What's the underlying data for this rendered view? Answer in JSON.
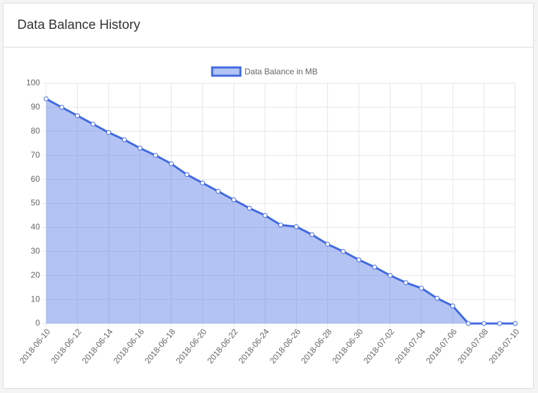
{
  "chart_data": {
    "type": "line",
    "title": "Data Balance History",
    "categories": [
      "2018-06-10",
      null,
      "2018-06-12",
      null,
      "2018-06-14",
      null,
      "2018-06-16",
      null,
      "2018-06-18",
      null,
      "2018-06-20",
      null,
      "2018-06-22",
      null,
      "2018-06-24",
      null,
      "2018-06-26",
      null,
      "2018-06-28",
      null,
      "2018-06-30",
      null,
      "2018-07-02",
      null,
      "2018-07-04",
      null,
      "2018-07-06",
      null,
      "2018-07-08",
      null,
      "2018-07-10"
    ],
    "series": [
      {
        "name": "Data Balance in MB",
        "color": "#4169e1",
        "values": [
          93.5,
          90,
          86.5,
          83,
          79.5,
          76.5,
          73,
          70,
          66.5,
          62,
          58.5,
          55,
          51.5,
          48,
          45,
          41,
          40.3,
          37,
          33,
          30,
          26.5,
          23.5,
          20,
          17,
          14.7,
          10.5,
          7.3,
          0,
          0,
          0,
          0
        ]
      }
    ],
    "ylim": [
      0,
      100
    ],
    "yticks": [
      0,
      10,
      20,
      30,
      40,
      50,
      60,
      70,
      80,
      90,
      100
    ],
    "grid": true,
    "fill": true,
    "legend": "top"
  }
}
